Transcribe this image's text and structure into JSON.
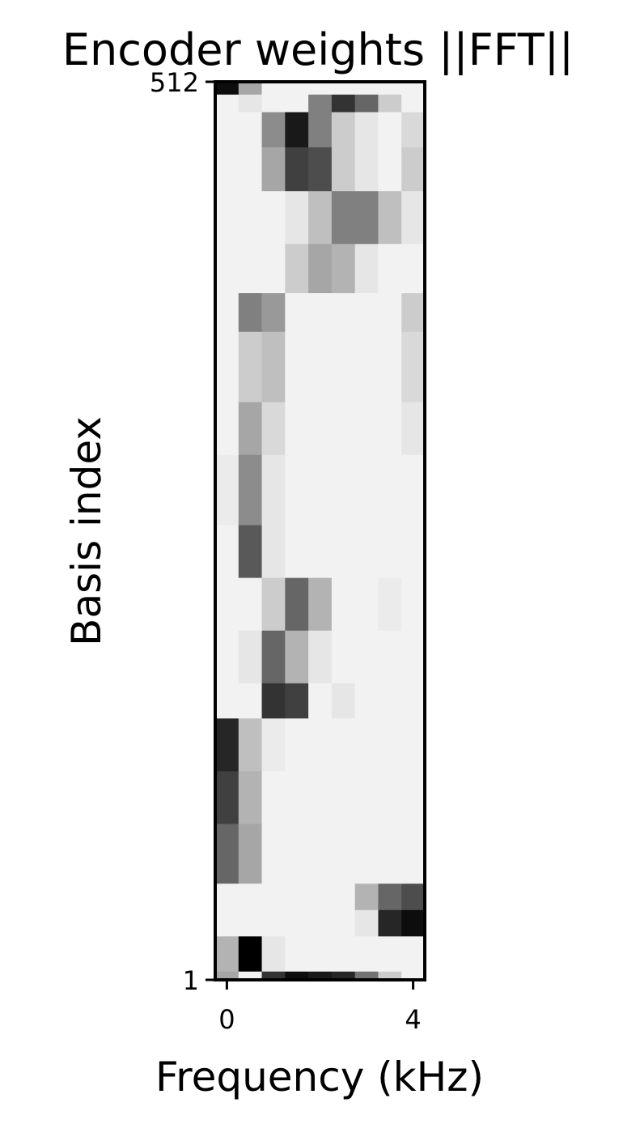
{
  "chart_data": {
    "type": "heatmap",
    "title": "Encoder weights ||FFT||",
    "xlabel": "Frequency (kHz)",
    "ylabel": "Basis index",
    "x_ticks": [
      {
        "label": "0",
        "value": 0
      },
      {
        "label": "4",
        "value": 4
      }
    ],
    "y_ticks": [
      {
        "label": "512",
        "value": 512
      },
      {
        "label": "1",
        "value": 1
      }
    ],
    "xlim": [
      -0.25,
      4.25
    ],
    "ylim": [
      1,
      512
    ],
    "n_columns": 9,
    "column_centers_khz": [
      0,
      0.5,
      1,
      1.5,
      2,
      2.5,
      3,
      3.5,
      4
    ],
    "colormap": "gray_r",
    "colors": {
      "high": "#000000",
      "low": "#ffffff"
    },
    "grid": false,
    "legend": "none",
    "bands": [
      {
        "y0": 1,
        "y1": 6,
        "values": [
          0.35,
          0.05,
          0.8,
          0.95,
          0.9,
          0.85,
          0.55,
          0.2,
          0.05
        ]
      },
      {
        "y0": 6,
        "y1": 26,
        "values": [
          0.3,
          1.0,
          0.1,
          0.05,
          0.05,
          0.05,
          0.05,
          0.05,
          0.05
        ]
      },
      {
        "y0": 26,
        "y1": 41,
        "values": [
          0.05,
          0.05,
          0.05,
          0.05,
          0.05,
          0.05,
          0.1,
          0.85,
          0.95
        ]
      },
      {
        "y0": 41,
        "y1": 56,
        "values": [
          0.05,
          0.05,
          0.05,
          0.05,
          0.05,
          0.05,
          0.3,
          0.6,
          0.7
        ]
      },
      {
        "y0": 56,
        "y1": 90,
        "values": [
          0.6,
          0.35,
          0.05,
          0.05,
          0.05,
          0.05,
          0.05,
          0.05,
          0.05
        ]
      },
      {
        "y0": 90,
        "y1": 120,
        "values": [
          0.75,
          0.3,
          0.05,
          0.05,
          0.05,
          0.05,
          0.05,
          0.05,
          0.05
        ]
      },
      {
        "y0": 120,
        "y1": 150,
        "values": [
          0.85,
          0.25,
          0.08,
          0.05,
          0.05,
          0.05,
          0.05,
          0.05,
          0.05
        ]
      },
      {
        "y0": 150,
        "y1": 170,
        "values": [
          0.05,
          0.05,
          0.8,
          0.75,
          0.05,
          0.1,
          0.05,
          0.05,
          0.05
        ]
      },
      {
        "y0": 170,
        "y1": 200,
        "values": [
          0.05,
          0.1,
          0.6,
          0.3,
          0.1,
          0.05,
          0.05,
          0.05,
          0.05
        ]
      },
      {
        "y0": 200,
        "y1": 230,
        "values": [
          0.05,
          0.05,
          0.2,
          0.6,
          0.3,
          0.05,
          0.05,
          0.08,
          0.05
        ]
      },
      {
        "y0": 230,
        "y1": 260,
        "values": [
          0.05,
          0.65,
          0.1,
          0.05,
          0.05,
          0.05,
          0.05,
          0.05,
          0.05
        ]
      },
      {
        "y0": 260,
        "y1": 300,
        "values": [
          0.08,
          0.45,
          0.1,
          0.05,
          0.05,
          0.05,
          0.05,
          0.05,
          0.05
        ]
      },
      {
        "y0": 300,
        "y1": 330,
        "values": [
          0.05,
          0.35,
          0.15,
          0.05,
          0.05,
          0.05,
          0.05,
          0.05,
          0.1
        ]
      },
      {
        "y0": 330,
        "y1": 370,
        "values": [
          0.05,
          0.2,
          0.25,
          0.05,
          0.05,
          0.05,
          0.05,
          0.05,
          0.15
        ]
      },
      {
        "y0": 370,
        "y1": 392,
        "values": [
          0.05,
          0.5,
          0.4,
          0.05,
          0.05,
          0.05,
          0.05,
          0.05,
          0.2
        ]
      },
      {
        "y0": 392,
        "y1": 420,
        "values": [
          0.05,
          0.05,
          0.05,
          0.2,
          0.35,
          0.3,
          0.1,
          0.05,
          0.05
        ]
      },
      {
        "y0": 420,
        "y1": 450,
        "values": [
          0.05,
          0.05,
          0.05,
          0.1,
          0.25,
          0.5,
          0.5,
          0.25,
          0.1
        ]
      },
      {
        "y0": 450,
        "y1": 475,
        "values": [
          0.05,
          0.05,
          0.35,
          0.75,
          0.7,
          0.2,
          0.1,
          0.05,
          0.2
        ]
      },
      {
        "y0": 475,
        "y1": 495,
        "values": [
          0.05,
          0.05,
          0.45,
          0.9,
          0.5,
          0.2,
          0.1,
          0.05,
          0.15
        ]
      },
      {
        "y0": 495,
        "y1": 505,
        "values": [
          0.05,
          0.1,
          0.05,
          0.05,
          0.5,
          0.8,
          0.6,
          0.2,
          0.05
        ]
      },
      {
        "y0": 505,
        "y1": 512,
        "values": [
          0.95,
          0.35,
          0.05,
          0.05,
          0.05,
          0.05,
          0.05,
          0.05,
          0.05
        ]
      }
    ]
  }
}
